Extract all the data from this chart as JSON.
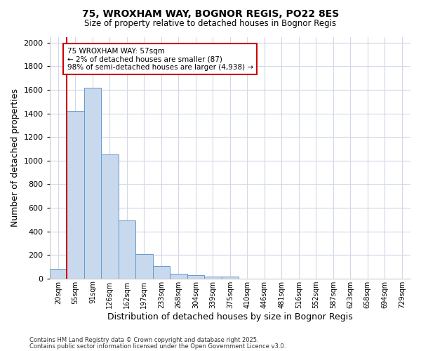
{
  "title1": "75, WROXHAM WAY, BOGNOR REGIS, PO22 8ES",
  "title2": "Size of property relative to detached houses in Bognor Regis",
  "xlabel": "Distribution of detached houses by size in Bognor Regis",
  "ylabel": "Number of detached properties",
  "bin_labels": [
    "20sqm",
    "55sqm",
    "91sqm",
    "126sqm",
    "162sqm",
    "197sqm",
    "233sqm",
    "268sqm",
    "304sqm",
    "339sqm",
    "375sqm",
    "410sqm",
    "446sqm",
    "481sqm",
    "516sqm",
    "552sqm",
    "587sqm",
    "623sqm",
    "658sqm",
    "694sqm",
    "729sqm"
  ],
  "bar_values": [
    80,
    1420,
    1620,
    1055,
    490,
    205,
    105,
    38,
    28,
    18,
    15,
    0,
    0,
    0,
    0,
    0,
    0,
    0,
    0,
    0,
    0
  ],
  "bar_color": "#c8d9ed",
  "bar_edge_color": "#6699cc",
  "annotation_text": "75 WROXHAM WAY: 57sqm\n← 2% of detached houses are smaller (87)\n98% of semi-detached houses are larger (4,938) →",
  "annotation_box_color": "#ffffff",
  "annotation_box_edge": "#cc0000",
  "vline_color": "#cc0000",
  "ylim": [
    0,
    2050
  ],
  "yticks": [
    0,
    200,
    400,
    600,
    800,
    1000,
    1200,
    1400,
    1600,
    1800,
    2000
  ],
  "bg_color": "#ffffff",
  "grid_color": "#d0d8e8",
  "footnote1": "Contains HM Land Registry data © Crown copyright and database right 2025.",
  "footnote2": "Contains public sector information licensed under the Open Government Licence v3.0."
}
